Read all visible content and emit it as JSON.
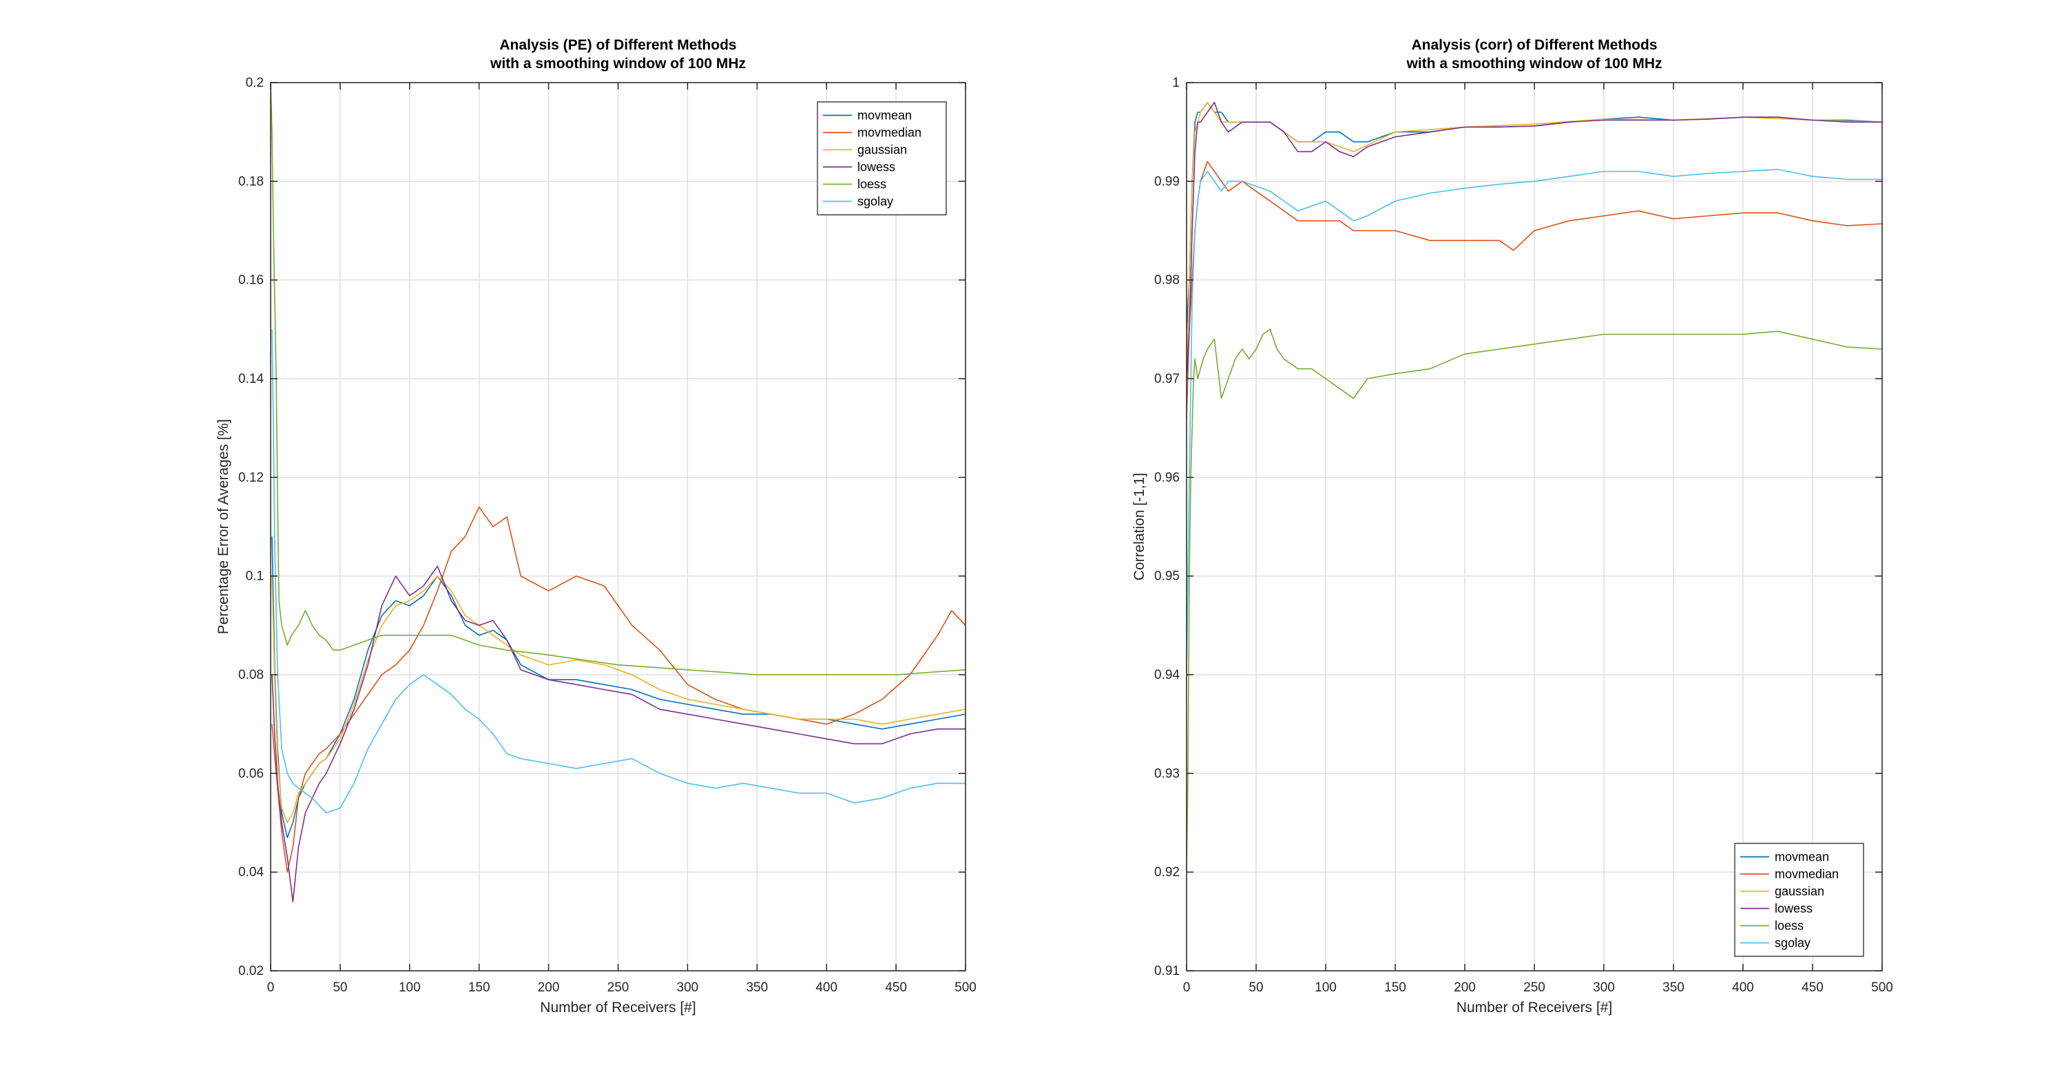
{
  "chart_data": [
    {
      "type": "line",
      "title_lines": [
        "Analysis (PE) of Different Methods",
        "with a smoothing window of 100 MHz"
      ],
      "xlabel": "Number of Receivers [#]",
      "ylabel": "Percentage Error of Averages [%]",
      "xlim": [
        0,
        500
      ],
      "ylim": [
        0.02,
        0.2
      ],
      "xticks": [
        0,
        50,
        100,
        150,
        200,
        250,
        300,
        350,
        400,
        450,
        500
      ],
      "xtick_labels": [
        "0",
        "50",
        "100",
        "150",
        "200",
        "250",
        "300",
        "350",
        "400",
        "450",
        "500"
      ],
      "yticks": [
        0.02,
        0.04,
        0.06,
        0.08,
        0.1,
        0.12,
        0.14,
        0.16,
        0.18,
        0.2
      ],
      "ytick_labels": [
        "0.02",
        "0.04",
        "0.06",
        "0.08",
        "0.1",
        "0.12",
        "0.14",
        "0.16",
        "0.18",
        "0.2"
      ],
      "grid": true,
      "legend_position": "top-right",
      "series": [
        {
          "name": "movmean",
          "color": "#0072BD",
          "x": [
            1,
            3,
            5,
            8,
            12,
            16,
            20,
            25,
            30,
            35,
            40,
            50,
            60,
            70,
            80,
            90,
            100,
            110,
            120,
            130,
            140,
            150,
            160,
            170,
            180,
            200,
            220,
            240,
            260,
            280,
            300,
            320,
            340,
            360,
            380,
            400,
            420,
            440,
            460,
            480,
            500
          ],
          "y": [
            0.108,
            0.08,
            0.065,
            0.052,
            0.047,
            0.05,
            0.055,
            0.058,
            0.06,
            0.062,
            0.063,
            0.068,
            0.075,
            0.085,
            0.092,
            0.095,
            0.094,
            0.096,
            0.1,
            0.096,
            0.09,
            0.088,
            0.089,
            0.087,
            0.082,
            0.079,
            0.079,
            0.078,
            0.077,
            0.075,
            0.074,
            0.073,
            0.072,
            0.072,
            0.071,
            0.071,
            0.07,
            0.069,
            0.07,
            0.071,
            0.072
          ]
        },
        {
          "name": "movmedian",
          "color": "#D95319",
          "x": [
            1,
            3,
            5,
            8,
            12,
            16,
            20,
            25,
            30,
            35,
            40,
            50,
            60,
            70,
            80,
            90,
            100,
            110,
            120,
            130,
            140,
            150,
            160,
            170,
            180,
            200,
            220,
            240,
            260,
            280,
            300,
            320,
            340,
            360,
            380,
            400,
            420,
            440,
            460,
            480,
            490,
            500
          ],
          "y": [
            0.07,
            0.063,
            0.057,
            0.048,
            0.04,
            0.045,
            0.055,
            0.06,
            0.062,
            0.064,
            0.065,
            0.068,
            0.072,
            0.076,
            0.08,
            0.082,
            0.085,
            0.09,
            0.097,
            0.105,
            0.108,
            0.114,
            0.11,
            0.112,
            0.1,
            0.097,
            0.1,
            0.098,
            0.09,
            0.085,
            0.078,
            0.075,
            0.073,
            0.072,
            0.071,
            0.07,
            0.072,
            0.075,
            0.08,
            0.088,
            0.093,
            0.09
          ]
        },
        {
          "name": "gaussian",
          "color": "#EDB120",
          "x": [
            1,
            3,
            5,
            8,
            12,
            16,
            20,
            25,
            30,
            35,
            40,
            50,
            60,
            70,
            80,
            90,
            100,
            110,
            120,
            130,
            140,
            150,
            160,
            170,
            180,
            200,
            220,
            240,
            260,
            280,
            300,
            320,
            340,
            360,
            380,
            400,
            420,
            440,
            460,
            480,
            500
          ],
          "y": [
            0.1,
            0.078,
            0.063,
            0.053,
            0.05,
            0.052,
            0.056,
            0.058,
            0.06,
            0.062,
            0.063,
            0.067,
            0.074,
            0.083,
            0.09,
            0.094,
            0.095,
            0.097,
            0.1,
            0.097,
            0.092,
            0.09,
            0.088,
            0.086,
            0.084,
            0.082,
            0.083,
            0.082,
            0.08,
            0.077,
            0.075,
            0.074,
            0.073,
            0.072,
            0.071,
            0.071,
            0.071,
            0.07,
            0.071,
            0.072,
            0.073
          ]
        },
        {
          "name": "lowess",
          "color": "#7E2F8E",
          "x": [
            1,
            3,
            5,
            8,
            12,
            16,
            20,
            25,
            30,
            35,
            40,
            50,
            60,
            70,
            80,
            90,
            100,
            110,
            120,
            130,
            140,
            150,
            160,
            170,
            180,
            200,
            220,
            240,
            260,
            280,
            300,
            320,
            340,
            360,
            380,
            400,
            420,
            440,
            460,
            480,
            500
          ],
          "y": [
            0.08,
            0.067,
            0.058,
            0.05,
            0.043,
            0.034,
            0.045,
            0.052,
            0.055,
            0.058,
            0.06,
            0.066,
            0.073,
            0.082,
            0.094,
            0.1,
            0.096,
            0.098,
            0.102,
            0.095,
            0.091,
            0.09,
            0.091,
            0.087,
            0.081,
            0.079,
            0.078,
            0.077,
            0.076,
            0.073,
            0.072,
            0.071,
            0.07,
            0.069,
            0.068,
            0.067,
            0.066,
            0.066,
            0.068,
            0.069,
            0.069
          ]
        },
        {
          "name": "loess",
          "color": "#77AC30",
          "x": [
            0,
            1,
            2,
            3,
            4,
            5,
            6,
            8,
            10,
            12,
            15,
            20,
            25,
            30,
            35,
            40,
            45,
            50,
            60,
            70,
            80,
            90,
            100,
            110,
            120,
            130,
            140,
            150,
            170,
            200,
            250,
            300,
            350,
            400,
            450,
            500
          ],
          "y": [
            0.2,
            0.19,
            0.17,
            0.155,
            0.14,
            0.115,
            0.095,
            0.09,
            0.088,
            0.086,
            0.088,
            0.09,
            0.093,
            0.09,
            0.088,
            0.087,
            0.085,
            0.085,
            0.086,
            0.087,
            0.088,
            0.088,
            0.088,
            0.088,
            0.088,
            0.088,
            0.087,
            0.086,
            0.085,
            0.084,
            0.082,
            0.081,
            0.08,
            0.08,
            0.08,
            0.081
          ]
        },
        {
          "name": "sgolay",
          "color": "#4DBEEE",
          "x": [
            1,
            2,
            3,
            5,
            8,
            12,
            16,
            20,
            25,
            30,
            40,
            50,
            60,
            70,
            80,
            90,
            100,
            110,
            120,
            130,
            140,
            150,
            160,
            170,
            180,
            200,
            220,
            240,
            260,
            280,
            300,
            320,
            340,
            360,
            380,
            400,
            420,
            440,
            460,
            480,
            500
          ],
          "y": [
            0.15,
            0.13,
            0.105,
            0.08,
            0.065,
            0.06,
            0.058,
            0.057,
            0.056,
            0.055,
            0.052,
            0.053,
            0.058,
            0.065,
            0.07,
            0.075,
            0.078,
            0.08,
            0.078,
            0.076,
            0.073,
            0.071,
            0.068,
            0.064,
            0.063,
            0.062,
            0.061,
            0.062,
            0.063,
            0.06,
            0.058,
            0.057,
            0.058,
            0.057,
            0.056,
            0.056,
            0.054,
            0.055,
            0.057,
            0.058,
            0.058
          ]
        }
      ]
    },
    {
      "type": "line",
      "title_lines": [
        "Analysis (corr) of Different Methods",
        "with a smoothing window of 100 MHz"
      ],
      "xlabel": "Number of Receivers [#]",
      "ylabel": "Correlation [-1,1]",
      "xlim": [
        0,
        500
      ],
      "ylim": [
        0.91,
        1.0
      ],
      "xticks": [
        0,
        50,
        100,
        150,
        200,
        250,
        300,
        350,
        400,
        450,
        500
      ],
      "xtick_labels": [
        "0",
        "50",
        "100",
        "150",
        "200",
        "250",
        "300",
        "350",
        "400",
        "450",
        "500"
      ],
      "yticks": [
        0.91,
        0.92,
        0.93,
        0.94,
        0.95,
        0.96,
        0.97,
        0.98,
        0.99,
        1.0
      ],
      "ytick_labels": [
        "0.91",
        "0.92",
        "0.93",
        "0.94",
        "0.95",
        "0.96",
        "0.97",
        "0.98",
        "0.99",
        "1"
      ],
      "grid": true,
      "legend_position": "bottom-right",
      "series": [
        {
          "name": "movmean",
          "color": "#0072BD",
          "x": [
            0,
            2,
            4,
            6,
            8,
            10,
            15,
            20,
            25,
            30,
            40,
            50,
            60,
            70,
            80,
            90,
            100,
            110,
            120,
            130,
            150,
            175,
            200,
            225,
            250,
            275,
            300,
            325,
            350,
            375,
            400,
            425,
            450,
            475,
            500
          ],
          "y": [
            0.975,
            0.98,
            0.99,
            0.996,
            0.997,
            0.997,
            0.998,
            0.997,
            0.997,
            0.996,
            0.996,
            0.996,
            0.996,
            0.995,
            0.994,
            0.994,
            0.995,
            0.995,
            0.994,
            0.994,
            0.995,
            0.995,
            0.9955,
            0.9955,
            0.9956,
            0.996,
            0.9963,
            0.9965,
            0.9962,
            0.9963,
            0.9965,
            0.9965,
            0.9962,
            0.9962,
            0.996
          ]
        },
        {
          "name": "movmedian",
          "color": "#D95319",
          "x": [
            0,
            2,
            4,
            6,
            8,
            10,
            15,
            20,
            25,
            30,
            40,
            50,
            60,
            70,
            80,
            90,
            100,
            110,
            120,
            130,
            150,
            175,
            200,
            225,
            235,
            250,
            275,
            300,
            325,
            350,
            375,
            400,
            425,
            450,
            475,
            500
          ],
          "y": [
            0.966,
            0.975,
            0.98,
            0.985,
            0.988,
            0.99,
            0.992,
            0.991,
            0.99,
            0.989,
            0.99,
            0.989,
            0.988,
            0.987,
            0.986,
            0.986,
            0.986,
            0.986,
            0.985,
            0.985,
            0.985,
            0.984,
            0.984,
            0.984,
            0.983,
            0.985,
            0.986,
            0.9865,
            0.987,
            0.9862,
            0.9865,
            0.9868,
            0.9868,
            0.986,
            0.9855,
            0.9857
          ]
        },
        {
          "name": "gaussian",
          "color": "#EDB120",
          "x": [
            0,
            2,
            4,
            6,
            8,
            10,
            15,
            20,
            25,
            30,
            40,
            50,
            60,
            70,
            80,
            90,
            100,
            120,
            150,
            200,
            250,
            300,
            350,
            400,
            450,
            500
          ],
          "y": [
            0.97,
            0.98,
            0.99,
            0.995,
            0.996,
            0.997,
            0.998,
            0.997,
            0.996,
            0.996,
            0.996,
            0.996,
            0.996,
            0.995,
            0.994,
            0.994,
            0.994,
            0.993,
            0.995,
            0.9955,
            0.9958,
            0.9963,
            0.9962,
            0.9965,
            0.9962,
            0.996
          ]
        },
        {
          "name": "lowess",
          "color": "#7E2F8E",
          "x": [
            0,
            2,
            4,
            6,
            8,
            10,
            15,
            20,
            25,
            30,
            40,
            50,
            60,
            70,
            80,
            90,
            100,
            110,
            120,
            130,
            150,
            175,
            200,
            225,
            250,
            275,
            300,
            325,
            350,
            375,
            400,
            425,
            450,
            475,
            500
          ],
          "y": [
            0.97,
            0.975,
            0.985,
            0.993,
            0.996,
            0.996,
            0.997,
            0.998,
            0.996,
            0.995,
            0.996,
            0.996,
            0.996,
            0.995,
            0.993,
            0.993,
            0.994,
            0.993,
            0.9925,
            0.9935,
            0.9945,
            0.995,
            0.9955,
            0.9955,
            0.9956,
            0.996,
            0.9962,
            0.9962,
            0.9962,
            0.9963,
            0.9965,
            0.9965,
            0.9962,
            0.996,
            0.996
          ]
        },
        {
          "name": "loess",
          "color": "#77AC30",
          "x": [
            0,
            1,
            2,
            3,
            4,
            5,
            6,
            8,
            10,
            12,
            15,
            20,
            25,
            30,
            35,
            40,
            45,
            50,
            55,
            60,
            65,
            70,
            80,
            90,
            100,
            110,
            120,
            130,
            150,
            175,
            200,
            250,
            300,
            350,
            400,
            425,
            450,
            475,
            500
          ],
          "y": [
            0.92,
            0.93,
            0.95,
            0.96,
            0.965,
            0.97,
            0.972,
            0.97,
            0.971,
            0.972,
            0.973,
            0.974,
            0.968,
            0.97,
            0.972,
            0.973,
            0.972,
            0.973,
            0.9745,
            0.975,
            0.973,
            0.972,
            0.971,
            0.971,
            0.97,
            0.969,
            0.968,
            0.97,
            0.9705,
            0.971,
            0.9725,
            0.9735,
            0.9745,
            0.9745,
            0.9745,
            0.9748,
            0.974,
            0.9732,
            0.973
          ]
        },
        {
          "name": "sgolay",
          "color": "#4DBEEE",
          "x": [
            0,
            2,
            4,
            6,
            8,
            10,
            15,
            20,
            25,
            30,
            40,
            50,
            60,
            70,
            80,
            90,
            100,
            110,
            120,
            130,
            150,
            175,
            200,
            225,
            250,
            275,
            300,
            325,
            350,
            375,
            400,
            425,
            450,
            475,
            500
          ],
          "y": [
            0.94,
            0.96,
            0.978,
            0.985,
            0.988,
            0.99,
            0.991,
            0.99,
            0.989,
            0.99,
            0.99,
            0.9895,
            0.989,
            0.988,
            0.987,
            0.9875,
            0.988,
            0.987,
            0.986,
            0.9865,
            0.988,
            0.9888,
            0.9893,
            0.9897,
            0.99,
            0.9905,
            0.991,
            0.991,
            0.9905,
            0.9908,
            0.991,
            0.9912,
            0.9905,
            0.9902,
            0.9902
          ]
        }
      ]
    }
  ]
}
